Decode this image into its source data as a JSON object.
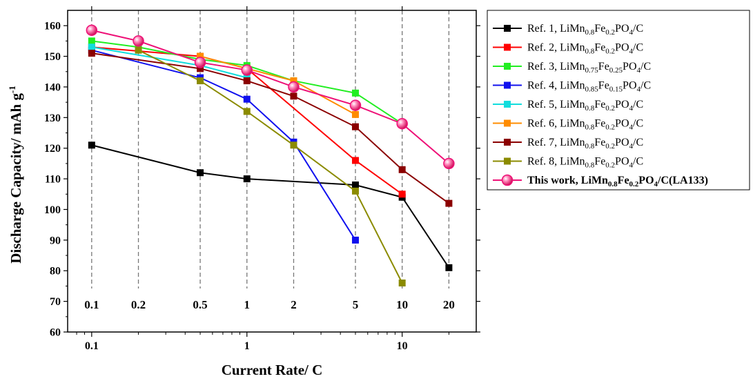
{
  "chart_data": {
    "type": "line",
    "xlabel": "Current Rate/ C",
    "ylabel_main": "Discharge Capacity/ mAh g",
    "ylabel_sup": "-1",
    "x_scale": "log",
    "xlim": [
      0.07,
      30
    ],
    "ylim": [
      60,
      165
    ],
    "yticks": [
      60,
      70,
      80,
      90,
      100,
      110,
      120,
      130,
      140,
      150,
      160
    ],
    "xticks": [
      {
        "value": 0.1,
        "label": "0.1"
      },
      {
        "value": 1,
        "label": "1"
      },
      {
        "value": 10,
        "label": "10"
      }
    ],
    "rate_markers": [
      {
        "value": 0.1,
        "label": "0.1"
      },
      {
        "value": 0.2,
        "label": "0.2"
      },
      {
        "value": 0.5,
        "label": "0.5"
      },
      {
        "value": 1,
        "label": "1"
      },
      {
        "value": 2,
        "label": "2"
      },
      {
        "value": 5,
        "label": "5"
      },
      {
        "value": 10,
        "label": "10"
      },
      {
        "value": 20,
        "label": "20"
      }
    ],
    "grid": "dashed vertical lines at each rate",
    "legend_position": "right, outside plot",
    "series": [
      {
        "name": "Ref. 1, LiMn0.8Fe0.2PO4/C",
        "label_parts": [
          [
            "Ref. 1, LiMn",
            ""
          ],
          [
            "0.8",
            "sub"
          ],
          [
            "Fe",
            ""
          ],
          [
            "0.2",
            "sub"
          ],
          [
            "PO",
            ""
          ],
          [
            "4",
            "sub"
          ],
          [
            "/C",
            ""
          ]
        ],
        "color": "#000000",
        "marker": "square",
        "x": [
          0.1,
          0.5,
          1,
          5,
          10,
          20
        ],
        "y": [
          121,
          112,
          110,
          108,
          104,
          81
        ]
      },
      {
        "name": "Ref. 2, LiMn0.8Fe0.2PO4/C",
        "label_parts": [
          [
            "Ref. 2, LiMn",
            ""
          ],
          [
            "0.8",
            "sub"
          ],
          [
            "Fe",
            ""
          ],
          [
            "0.2",
            "sub"
          ],
          [
            "PO",
            ""
          ],
          [
            "4",
            "sub"
          ],
          [
            "/C",
            ""
          ]
        ],
        "color": "#ff0000",
        "marker": "square",
        "x": [
          0.1,
          0.5,
          1,
          5,
          10
        ],
        "y": [
          153,
          150,
          146,
          116,
          105
        ]
      },
      {
        "name": "Ref. 3, LiMn0.75Fe0.25PO4/C",
        "label_parts": [
          [
            "Ref. 3, LiMn",
            ""
          ],
          [
            "0.75",
            "sub"
          ],
          [
            "Fe",
            ""
          ],
          [
            "0.25",
            "sub"
          ],
          [
            "PO",
            ""
          ],
          [
            "4",
            "sub"
          ],
          [
            "/C",
            ""
          ]
        ],
        "color": "#22ee22",
        "marker": "square",
        "x": [
          0.1,
          0.2,
          0.5,
          1,
          2,
          5,
          10
        ],
        "y": [
          155,
          153,
          149,
          147,
          142,
          138,
          128
        ]
      },
      {
        "name": "Ref. 4, LiMn0.85Fe0.15PO4/C",
        "label_parts": [
          [
            "Ref. 4, LiMn",
            ""
          ],
          [
            "0.85",
            "sub"
          ],
          [
            "Fe",
            ""
          ],
          [
            "0.15",
            "sub"
          ],
          [
            "PO",
            ""
          ],
          [
            "4",
            "sub"
          ],
          [
            "/C",
            ""
          ]
        ],
        "color": "#1010ee",
        "marker": "square",
        "x": [
          0.1,
          0.5,
          1,
          2,
          5
        ],
        "y": [
          152,
          143,
          136,
          122,
          90
        ]
      },
      {
        "name": "Ref. 5, LiMn0.8Fe0.2PO4/C",
        "label_parts": [
          [
            "Ref. 5, LiMn",
            ""
          ],
          [
            "0.8",
            "sub"
          ],
          [
            "Fe",
            ""
          ],
          [
            "0.2",
            "sub"
          ],
          [
            "PO",
            ""
          ],
          [
            "4",
            "sub"
          ],
          [
            "/C",
            ""
          ]
        ],
        "color": "#11dddd",
        "marker": "square",
        "x": [
          0.1,
          0.5,
          1
        ],
        "y": [
          153,
          147,
          143
        ]
      },
      {
        "name": "Ref. 6, LiMn0.8Fe0.2PO4/C",
        "label_parts": [
          [
            "Ref. 6, LiMn",
            ""
          ],
          [
            "0.8",
            "sub"
          ],
          [
            "Fe",
            ""
          ],
          [
            "0.2",
            "sub"
          ],
          [
            "PO",
            ""
          ],
          [
            "4",
            "sub"
          ],
          [
            "/C",
            ""
          ]
        ],
        "color": "#ff8c00",
        "marker": "square",
        "x": [
          0.5,
          1,
          2,
          5
        ],
        "y": [
          150,
          146,
          142,
          131
        ]
      },
      {
        "name": "Ref. 7, LiMn0.8Fe0.2PO4/C",
        "label_parts": [
          [
            "Ref. 7, LiMn",
            ""
          ],
          [
            "0.8",
            "sub"
          ],
          [
            "Fe",
            ""
          ],
          [
            "0.2",
            "sub"
          ],
          [
            "PO",
            ""
          ],
          [
            "4",
            "sub"
          ],
          [
            "/C",
            ""
          ]
        ],
        "color": "#8b0000",
        "marker": "square",
        "x": [
          0.1,
          0.5,
          1,
          2,
          5,
          10,
          20
        ],
        "y": [
          151,
          146,
          142,
          137,
          127,
          113,
          102
        ]
      },
      {
        "name": "Ref. 8, LiMn0.8Fe0.2PO4/C",
        "label_parts": [
          [
            "Ref. 8, LiMn",
            ""
          ],
          [
            "0.8",
            "sub"
          ],
          [
            "Fe",
            ""
          ],
          [
            "0.2",
            "sub"
          ],
          [
            "PO",
            ""
          ],
          [
            "4",
            "sub"
          ],
          [
            "/C",
            ""
          ]
        ],
        "color": "#8b8b00",
        "marker": "square",
        "x": [
          0.2,
          0.5,
          1,
          2,
          5,
          10
        ],
        "y": [
          152,
          142,
          132,
          121,
          106,
          76
        ]
      },
      {
        "name": "This work, LiMn0.8Fe0.2PO4/C(LA133)",
        "label_parts": [
          [
            "This work, LiMn",
            ""
          ],
          [
            "0.8",
            "sub"
          ],
          [
            "Fe",
            ""
          ],
          [
            "0.2",
            "sub"
          ],
          [
            "PO",
            ""
          ],
          [
            "4",
            "sub"
          ],
          [
            "/C(LA133)",
            ""
          ]
        ],
        "color": "#ee1177",
        "marker": "sphere",
        "bold": true,
        "x": [
          0.1,
          0.2,
          0.5,
          1,
          2,
          5,
          10,
          20
        ],
        "y": [
          158.5,
          155,
          148,
          145.5,
          140,
          134,
          128,
          115
        ]
      }
    ]
  }
}
